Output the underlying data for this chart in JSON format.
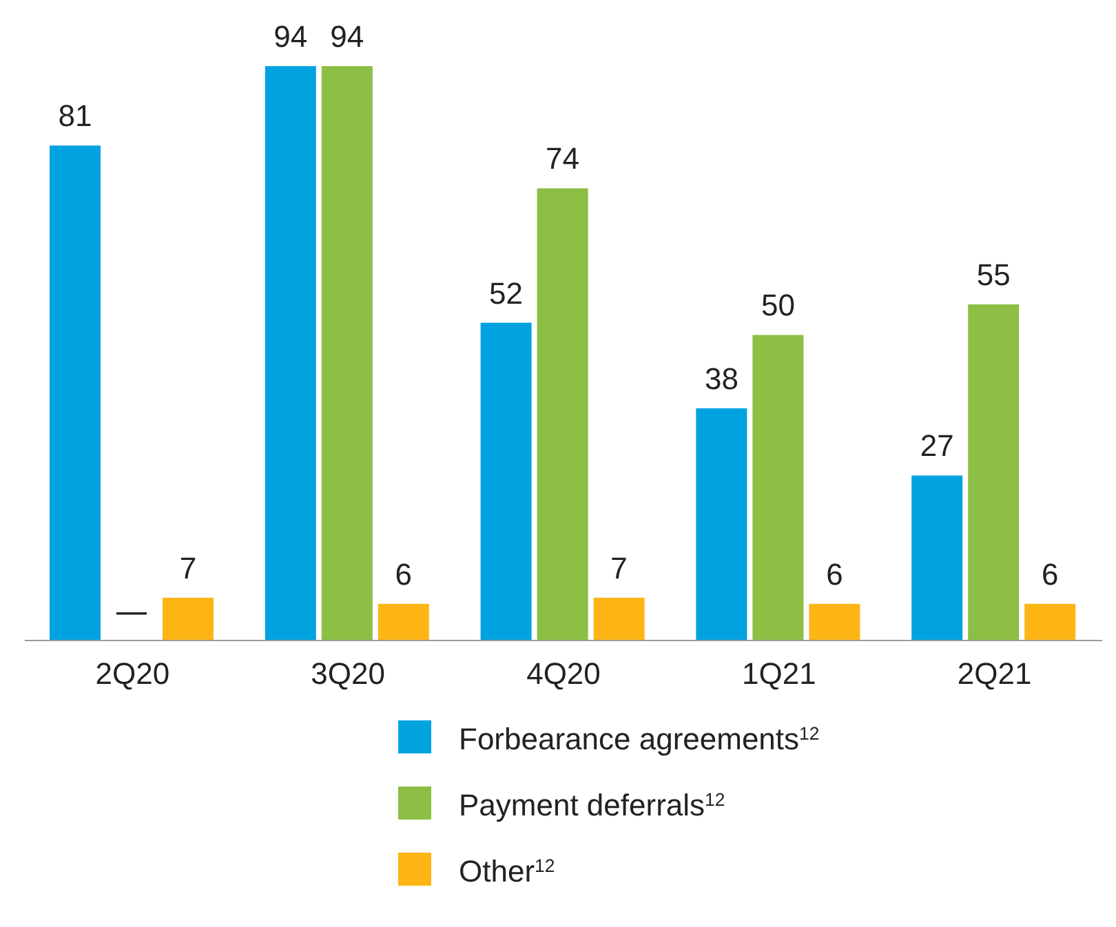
{
  "chart_data": {
    "type": "bar",
    "categories": [
      "2Q20",
      "3Q20",
      "4Q20",
      "1Q21",
      "2Q21"
    ],
    "series": [
      {
        "name": "Forbearance agreements$^{12}$",
        "color": "#00a3e0",
        "values": [
          81,
          94,
          52,
          38,
          27
        ],
        "value_labels": [
          "81",
          "94",
          "52",
          "38",
          "27"
        ]
      },
      {
        "name": "Payment deferrals$^{12}$",
        "color": "#8cbf44",
        "values": [
          0,
          94,
          74,
          50,
          55
        ],
        "value_labels": [
          "—",
          "94",
          "74",
          "50",
          "55"
        ]
      },
      {
        "name": "Other$^{12}$",
        "color": "#fdb515",
        "values": [
          7,
          6,
          7,
          6,
          6
        ],
        "value_labels": [
          "7",
          "6",
          "7",
          "6",
          "6"
        ]
      }
    ],
    "legend": "bottom",
    "grid": false
  }
}
